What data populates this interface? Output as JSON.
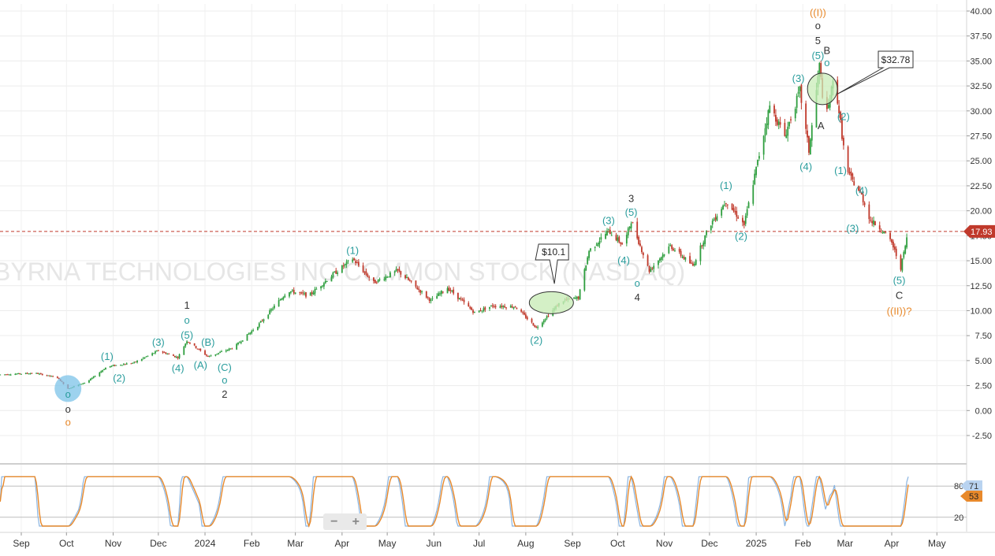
{
  "watermark": "BYRNA TECHNOLOGIES INC COMMON STOCK (NASDAQ)",
  "price_tag": {
    "label": "17.93",
    "color": "#c0392b"
  },
  "colors": {
    "up": "#2e9e3e",
    "down": "#c0392b",
    "teal": "#2a9d9d",
    "orange": "#e8892b",
    "stoch_fast": "#8ab4e0",
    "stoch_slow": "#e8892b"
  },
  "zoom": {
    "minus": "−",
    "plus": "+"
  },
  "chart_data": [
    {
      "type": "candlestick",
      "title": "",
      "y_ticks": [
        "40.00",
        "37.50",
        "35.00",
        "32.50",
        "30.00",
        "27.50",
        "25.00",
        "22.50",
        "20.00",
        "17.50",
        "15.00",
        "12.50",
        "10.00",
        "7.50",
        "5.00",
        "2.50",
        "0.00",
        "-2.50"
      ],
      "ylim": [
        -4.5,
        40.5
      ],
      "x_ticks": [
        "Sep",
        "Oct",
        "Nov",
        "Dec",
        "2024",
        "Feb",
        "Mar",
        "Apr",
        "May",
        "Jun",
        "Jul",
        "Aug",
        "Sep",
        "Oct",
        "Nov",
        "Dec",
        "2025",
        "Feb",
        "Mar",
        "Apr",
        "May"
      ],
      "current_price": 17.93,
      "price_path": [
        [
          "2023-08-18",
          3.6
        ],
        [
          "2023-09-10",
          3.75
        ],
        [
          "2023-09-25",
          3.3
        ],
        [
          "2023-10-02",
          2.2
        ],
        [
          "2023-10-15",
          2.9
        ],
        [
          "2023-10-28",
          4.4
        ],
        [
          "2023-11-15",
          4.8
        ],
        [
          "2023-12-01",
          6.0
        ],
        [
          "2023-12-14",
          5.3
        ],
        [
          "2023-12-20",
          7.0
        ],
        [
          "2024-01-03",
          5.4
        ],
        [
          "2024-01-20",
          6.3
        ],
        [
          "2024-02-05",
          8.5
        ],
        [
          "2024-02-25",
          12.0
        ],
        [
          "2024-03-10",
          11.5
        ],
        [
          "2024-03-25",
          13.5
        ],
        [
          "2024-04-08",
          15.2
        ],
        [
          "2024-04-22",
          12.8
        ],
        [
          "2024-05-08",
          14.0
        ],
        [
          "2024-05-30",
          11.0
        ],
        [
          "2024-06-10",
          12.3
        ],
        [
          "2024-06-28",
          9.8
        ],
        [
          "2024-07-10",
          10.5
        ],
        [
          "2024-07-25",
          10.4
        ],
        [
          "2024-08-08",
          8.3
        ],
        [
          "2024-08-25",
          11.0
        ],
        [
          "2024-09-05",
          11.3
        ],
        [
          "2024-09-12",
          16.0
        ],
        [
          "2024-09-25",
          18.0
        ],
        [
          "2024-10-05",
          16.5
        ],
        [
          "2024-10-10",
          19.0
        ],
        [
          "2024-10-22",
          14.0
        ],
        [
          "2024-11-05",
          16.5
        ],
        [
          "2024-11-20",
          14.5
        ],
        [
          "2024-12-01",
          18.5
        ],
        [
          "2024-12-12",
          21.0
        ],
        [
          "2024-12-24",
          18.6
        ],
        [
          "2025-01-10",
          30.5
        ],
        [
          "2025-01-20",
          27.5
        ],
        [
          "2025-01-30",
          32.0
        ],
        [
          "2025-02-05",
          26.0
        ],
        [
          "2025-02-12",
          34.5
        ],
        [
          "2025-02-16",
          29.0
        ],
        [
          "2025-02-22",
          33.5
        ],
        [
          "2025-03-02",
          24.0
        ],
        [
          "2025-03-12",
          21.5
        ],
        [
          "2025-03-18",
          19.0
        ],
        [
          "2025-03-25",
          18.2
        ],
        [
          "2025-04-01",
          16.8
        ],
        [
          "2025-04-07",
          14.3
        ],
        [
          "2025-04-12",
          17.93
        ]
      ],
      "stochastic": {
        "levels": [
          "80",
          "20"
        ],
        "badges": [
          "71",
          "53"
        ]
      },
      "callouts": [
        {
          "label": "$10.1",
          "x": "2024-08-20",
          "y": 10.1
        },
        {
          "label": "$32.78",
          "x": "2025-02-22",
          "y": 32.78
        }
      ],
      "wave_labels": [
        {
          "text": "o",
          "x": "2023-10-02",
          "y": 1.6,
          "color": "teal"
        },
        {
          "text": "o",
          "x": "2023-10-02",
          "y": 0.1,
          "color": "dark"
        },
        {
          "text": "o",
          "x": "2023-10-02",
          "y": -1.2,
          "color": "orange"
        },
        {
          "text": "(1)",
          "x": "2023-10-28",
          "y": 5.4,
          "color": "teal"
        },
        {
          "text": "(2)",
          "x": "2023-11-05",
          "y": 3.2,
          "color": "teal"
        },
        {
          "text": "(3)",
          "x": "2023-12-01",
          "y": 6.8,
          "color": "teal"
        },
        {
          "text": "(4)",
          "x": "2023-12-14",
          "y": 4.2,
          "color": "teal"
        },
        {
          "text": "(5)",
          "x": "2023-12-20",
          "y": 7.5,
          "color": "teal"
        },
        {
          "text": "o",
          "x": "2023-12-20",
          "y": 9.0,
          "color": "teal"
        },
        {
          "text": "1",
          "x": "2023-12-20",
          "y": 10.5,
          "color": "dark"
        },
        {
          "text": "(A)",
          "x": "2023-12-29",
          "y": 4.5,
          "color": "teal"
        },
        {
          "text": "(B)",
          "x": "2024-01-03",
          "y": 6.8,
          "color": "teal"
        },
        {
          "text": "(C)",
          "x": "2024-01-14",
          "y": 4.3,
          "color": "teal"
        },
        {
          "text": "o",
          "x": "2024-01-14",
          "y": 3.0,
          "color": "teal"
        },
        {
          "text": "2",
          "x": "2024-01-14",
          "y": 1.6,
          "color": "dark"
        },
        {
          "text": "(1)",
          "x": "2024-04-08",
          "y": 16.0,
          "color": "teal"
        },
        {
          "text": "(2)",
          "x": "2024-08-08",
          "y": 7.0,
          "color": "teal"
        },
        {
          "text": "(3)",
          "x": "2024-09-25",
          "y": 19.0,
          "color": "teal"
        },
        {
          "text": "(5)",
          "x": "2024-10-10",
          "y": 19.8,
          "color": "teal"
        },
        {
          "text": "3",
          "x": "2024-10-10",
          "y": 21.2,
          "color": "dark"
        },
        {
          "text": "(4)",
          "x": "2024-10-05",
          "y": 15.0,
          "color": "teal"
        },
        {
          "text": "o",
          "x": "2024-10-14",
          "y": 12.7,
          "color": "teal"
        },
        {
          "text": "4",
          "x": "2024-10-14",
          "y": 11.3,
          "color": "dark"
        },
        {
          "text": "(1)",
          "x": "2024-12-12",
          "y": 22.5,
          "color": "teal"
        },
        {
          "text": "(2)",
          "x": "2024-12-22",
          "y": 17.4,
          "color": "teal"
        },
        {
          "text": "(3)",
          "x": "2025-01-29",
          "y": 33.2,
          "color": "teal"
        },
        {
          "text": "(4)",
          "x": "2025-02-03",
          "y": 24.4,
          "color": "teal"
        },
        {
          "text": "(5)",
          "x": "2025-02-11",
          "y": 35.5,
          "color": "teal"
        },
        {
          "text": "5",
          "x": "2025-02-11",
          "y": 37.0,
          "color": "dark"
        },
        {
          "text": "o",
          "x": "2025-02-11",
          "y": 38.5,
          "color": "dark"
        },
        {
          "text": "((I))",
          "x": "2025-02-11",
          "y": 39.8,
          "color": "orange"
        },
        {
          "text": "B",
          "x": "2025-02-17",
          "y": 36.0,
          "color": "dark"
        },
        {
          "text": "o",
          "x": "2025-02-17",
          "y": 34.8,
          "color": "teal"
        },
        {
          "text": "A",
          "x": "2025-02-13",
          "y": 28.5,
          "color": "dark"
        },
        {
          "text": "(2)",
          "x": "2025-02-28",
          "y": 29.4,
          "color": "teal"
        },
        {
          "text": "(1)",
          "x": "2025-02-26",
          "y": 24.0,
          "color": "teal"
        },
        {
          "text": "(4)",
          "x": "2025-03-12",
          "y": 22.0,
          "color": "teal"
        },
        {
          "text": "(3)",
          "x": "2025-03-06",
          "y": 18.2,
          "color": "teal"
        },
        {
          "text": "(5)",
          "x": "2025-04-06",
          "y": 13.0,
          "color": "teal"
        },
        {
          "text": "C",
          "x": "2025-04-06",
          "y": 11.5,
          "color": "dark"
        },
        {
          "text": "((II))?",
          "x": "2025-04-06",
          "y": 9.9,
          "color": "orange"
        }
      ]
    }
  ]
}
